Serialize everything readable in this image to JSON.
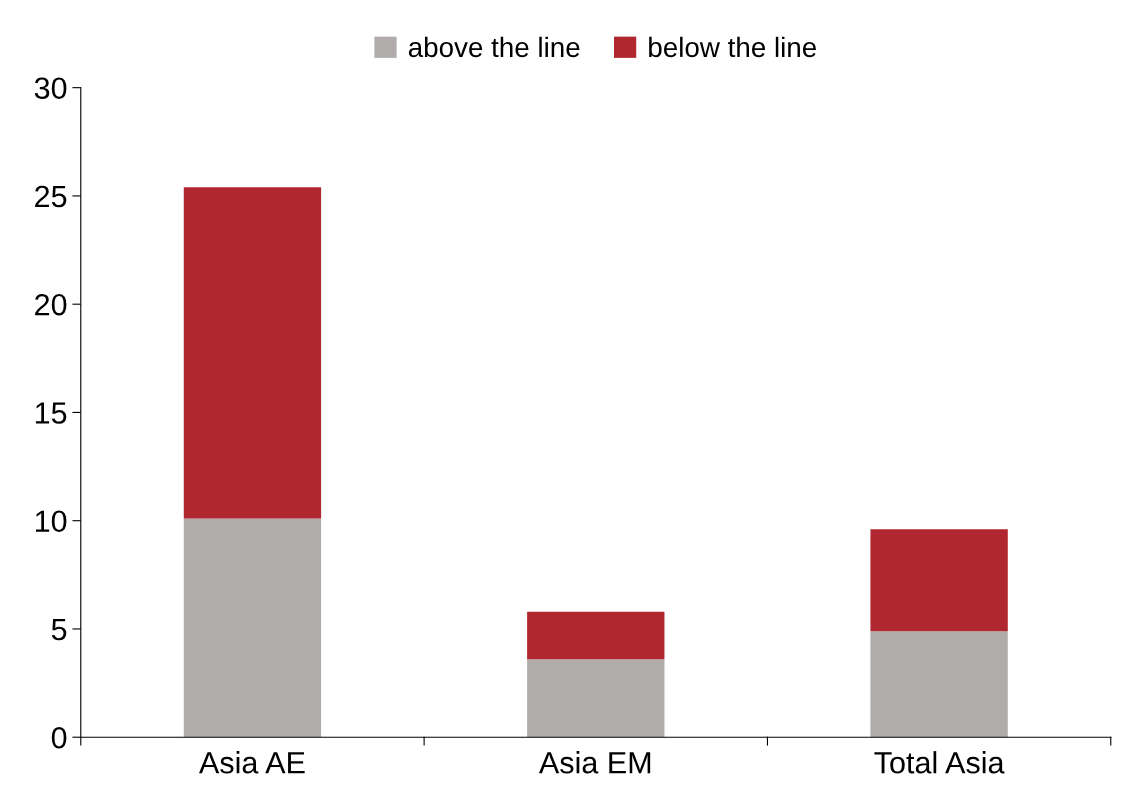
{
  "chart_data": {
    "type": "bar",
    "stacked": true,
    "categories": [
      "Asia AE",
      "Asia EM",
      "Total Asia"
    ],
    "series": [
      {
        "name": "above the line",
        "color": "#b0acab",
        "values": [
          10.1,
          3.6,
          4.9
        ]
      },
      {
        "name": "below the line",
        "color": "#b0272f",
        "values": [
          15.3,
          2.2,
          4.7
        ]
      }
    ],
    "ylim": [
      0,
      30
    ],
    "yticks": [
      0,
      5,
      10,
      15,
      20,
      25,
      30
    ],
    "grid": false,
    "legend": "top"
  }
}
